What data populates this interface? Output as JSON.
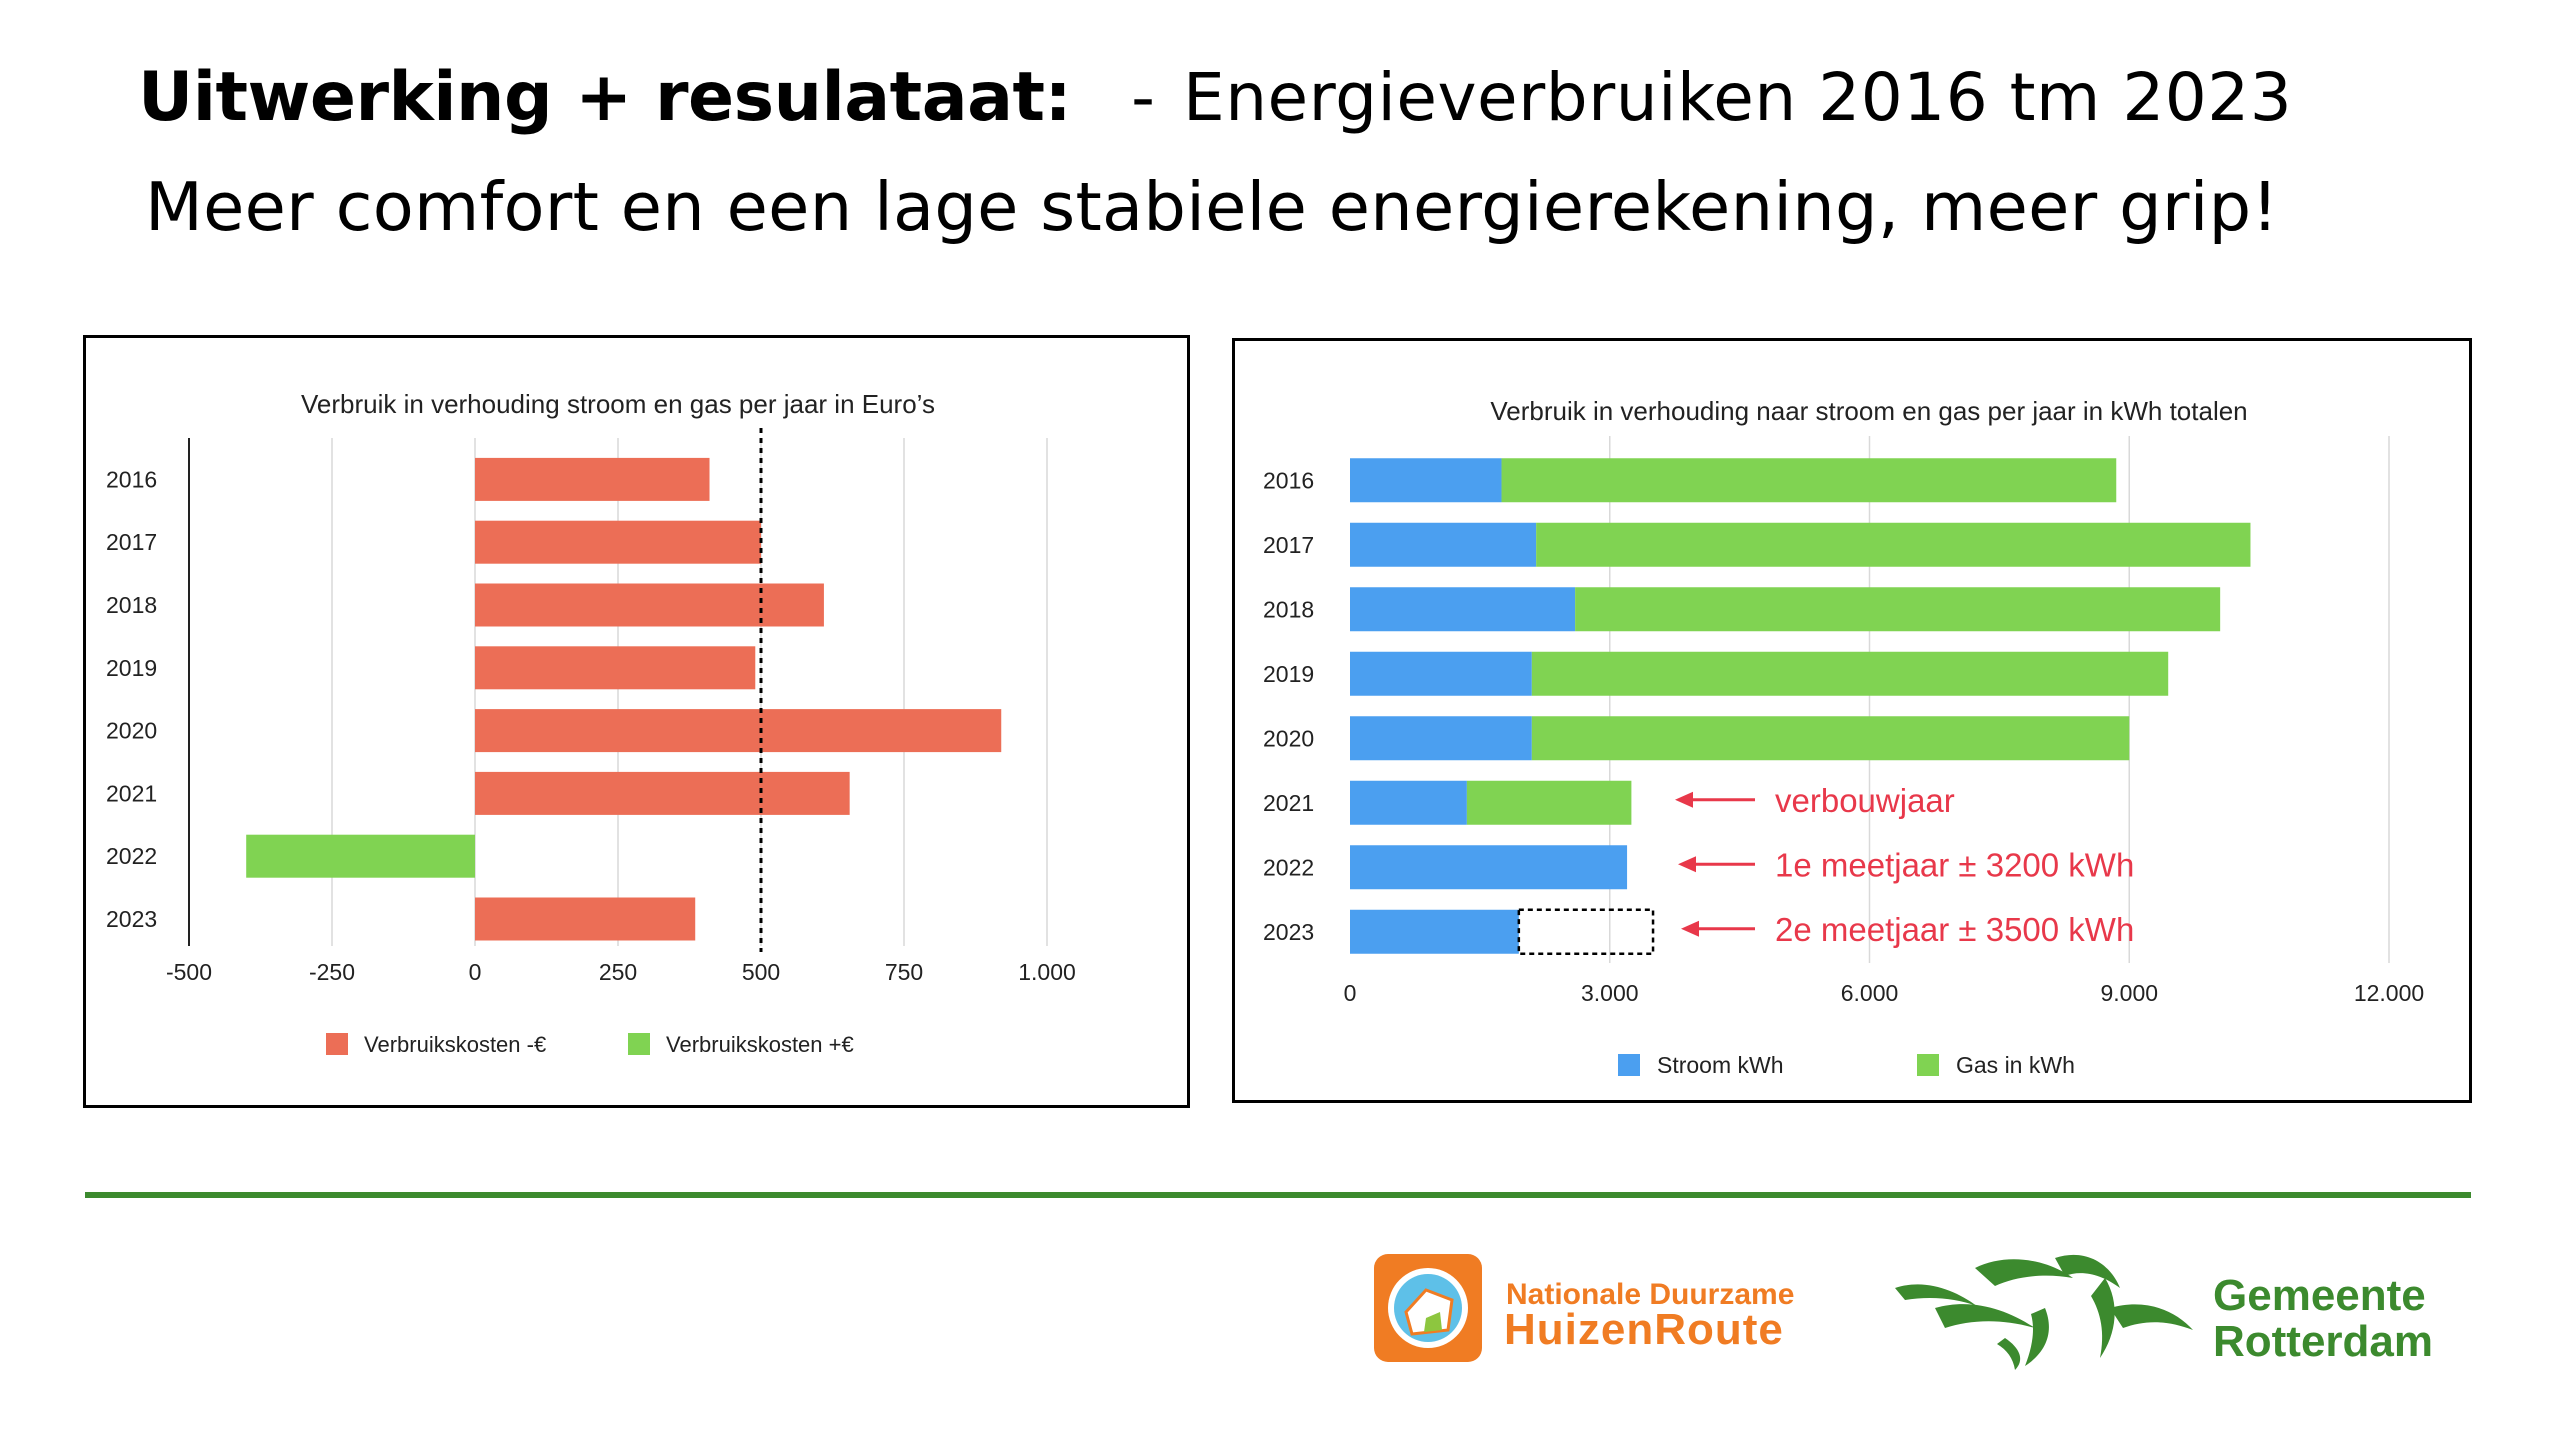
{
  "title": {
    "bold": "Uitwerking + resulataat:",
    "dash": "-",
    "rest": "Energieverbruiken 2016 tm 2023"
  },
  "subtitle": "Meer comfort en een lage stabiele energierekening, meer grip!",
  "colors": {
    "red_bar": "#ec6e56",
    "green_bar": "#80d352",
    "blue_bar": "#4b9ff0",
    "annotation_red": "#e8384a",
    "divider_green": "#3c8a2e",
    "ndhr_orange": "#f07c23",
    "rdam_green": "#3c8a2e"
  },
  "chart_data": [
    {
      "type": "bar",
      "orientation": "horizontal",
      "title": "Verbruik in verhouding stroom en gas per jaar in Euro’s",
      "categories": [
        "2016",
        "2017",
        "2018",
        "2019",
        "2020",
        "2021",
        "2022",
        "2023"
      ],
      "series": [
        {
          "name": "Verbruikskosten -€",
          "color": "#ec6e56",
          "values": [
            410,
            500,
            610,
            490,
            920,
            655,
            null,
            385
          ]
        },
        {
          "name": "Verbruikskosten +€",
          "color": "#80d352",
          "values": [
            null,
            null,
            null,
            null,
            null,
            null,
            -400,
            null
          ]
        }
      ],
      "xlim": [
        -500,
        1000
      ],
      "xticks": [
        -500,
        -250,
        0,
        250,
        500,
        750,
        1000
      ],
      "xtick_labels": [
        "-500",
        "-250",
        "0",
        "250",
        "500",
        "750",
        "1.000"
      ],
      "reference_line": 500,
      "grid": true,
      "legend": "bottom"
    },
    {
      "type": "bar",
      "orientation": "horizontal",
      "stacked": true,
      "title": "Verbruik in verhouding naar stroom en gas per jaar in kWh totalen",
      "categories": [
        "2016",
        "2017",
        "2018",
        "2019",
        "2020",
        "2021",
        "2022",
        "2023"
      ],
      "series": [
        {
          "name": "Stroom kWh",
          "color": "#4b9ff0",
          "values": [
            1750,
            2150,
            2600,
            2100,
            2100,
            1350,
            3200,
            1950
          ]
        },
        {
          "name": "Gas in kWh",
          "color": "#80d352",
          "values": [
            7100,
            8250,
            7450,
            7350,
            6900,
            1900,
            0,
            0
          ]
        }
      ],
      "xlim": [
        0,
        12000
      ],
      "xticks": [
        0,
        3000,
        6000,
        9000,
        12000
      ],
      "xtick_labels": [
        "0",
        "3.000",
        "6.000",
        "9.000",
        "12.000"
      ],
      "dashed_box": {
        "category": "2023",
        "from": 1950,
        "to": 3500
      },
      "annotations": [
        {
          "category": "2021",
          "text": "verbouwjaar"
        },
        {
          "category": "2022",
          "text": "1e meetjaar ± 3200 kWh"
        },
        {
          "category": "2023",
          "text": "2e meetjaar ± 3500 kWh"
        }
      ],
      "grid": true,
      "legend": "bottom"
    }
  ],
  "logos": {
    "ndhr": {
      "line1": "Nationale Duurzame",
      "line2": "HuizenRoute"
    },
    "rotterdam": {
      "line1": "Gemeente",
      "line2": "Rotterdam"
    }
  }
}
